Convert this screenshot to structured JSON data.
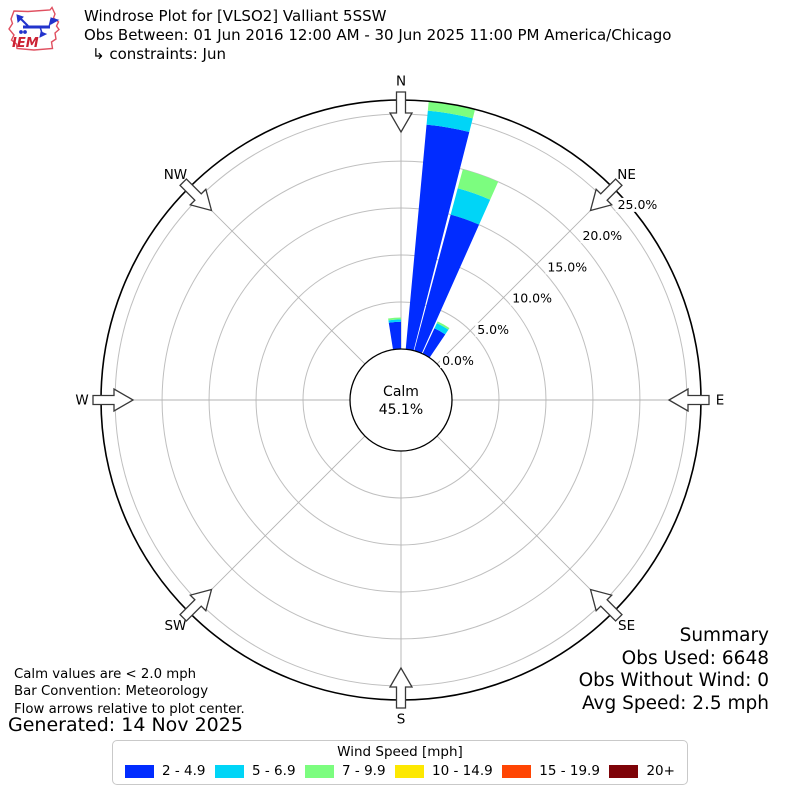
{
  "header": {
    "logo_text": "IEM",
    "title": "Windrose Plot for [VLSO2] Valliant 5SSW",
    "obs_between": "Obs Between: 01 Jun 2016 12:00 AM - 30 Jun 2025 11:00 PM America/Chicago",
    "constraints": "↳ constraints: Jun"
  },
  "chart_data": {
    "type": "windrose",
    "direction_labels": [
      "N",
      "NE",
      "E",
      "SE",
      "S",
      "SW",
      "W",
      "NW"
    ],
    "radial_axis": {
      "tick_values": [
        0,
        5,
        10,
        15,
        20,
        25
      ],
      "tick_labels": [
        "0.0%",
        "5.0%",
        "10.0%",
        "15.0%",
        "20.0%",
        "25.0%"
      ],
      "max": 26.5,
      "units": "percent of observations"
    },
    "calm": {
      "line1": "Calm",
      "line2": "45.1%",
      "percent": 45.1
    },
    "speed_bins": [
      {
        "label": "2 - 4.9",
        "color": "#012cff"
      },
      {
        "label": "5 - 6.9",
        "color": "#00d5f7"
      },
      {
        "label": "7 - 9.9",
        "color": "#7cfd7f"
      },
      {
        "label": "10 - 14.9",
        "color": "#fde801"
      },
      {
        "label": "15 - 19.9",
        "color": "#ff4503"
      },
      {
        "label": "20+",
        "color": "#7e0308"
      }
    ],
    "sector_width_deg": 9,
    "bars": [
      {
        "direction_deg": 355.5,
        "segments": [
          2.9,
          0.25,
          0.2,
          0,
          0,
          0
        ]
      },
      {
        "direction_deg": 9.8,
        "segments": [
          24.0,
          1.5,
          1.0,
          0,
          0,
          0
        ]
      },
      {
        "direction_deg": 19.5,
        "segments": [
          15.0,
          2.9,
          2.1,
          0,
          0,
          0
        ]
      },
      {
        "direction_deg": 29.5,
        "segments": [
          3.0,
          0.6,
          0.2,
          0,
          0,
          0
        ]
      }
    ]
  },
  "notes": [
    "Calm values are < 2.0 mph",
    "Bar Convention: Meteorology",
    "Flow arrows relative to plot center."
  ],
  "generated": "Generated: 14 Nov 2025",
  "summary": {
    "title": "Summary",
    "lines": [
      "Obs Used: 6648",
      "Obs Without Wind: 0",
      "Avg Speed: 2.5 mph"
    ]
  },
  "legend": {
    "title": "Wind Speed [mph]"
  }
}
